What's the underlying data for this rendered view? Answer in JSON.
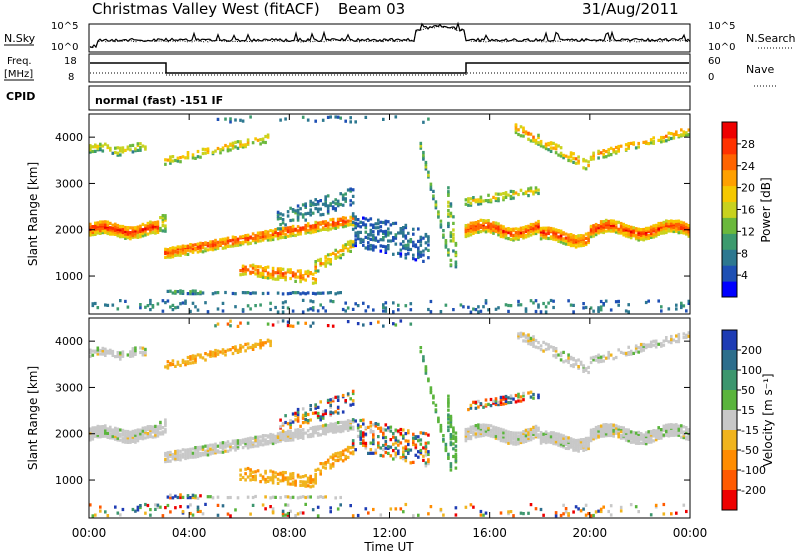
{
  "header": {
    "title": "Christmas Valley West (fitACF)",
    "beam": "Beam 03",
    "date": "31/Aug/2011"
  },
  "top_panels": {
    "nsky_label": "N.Sky",
    "nsearch_label": "N.Search",
    "nsky_ticks": [
      "10^5",
      "10^0"
    ],
    "nsearch_ticks": [
      "10^5",
      "10^0"
    ],
    "freq_label": "Freq.",
    "freq_unit": "[MHz]",
    "freq_ticks": [
      "18",
      "8"
    ],
    "nave_label": "Nave",
    "nave_ticks": [
      "60",
      "0"
    ],
    "cpid_label": "CPID",
    "mode_text": "normal (fast) -151 IF"
  },
  "chart_data": [
    {
      "type": "heatmap",
      "name": "power-panel",
      "ylabel": "Slant Range [km]",
      "xlabel": "",
      "yticks": [
        "1000",
        "2000",
        "3000",
        "4000"
      ],
      "ylim": [
        180,
        4500
      ],
      "xlim": [
        0,
        24
      ],
      "colorbar": {
        "label": "Power [dB]",
        "ticks": [
          "4",
          "8",
          "12",
          "16",
          "20",
          "24",
          "28"
        ],
        "colors": [
          "#0000ff",
          "#1e50b4",
          "#2d7890",
          "#3c9a6e",
          "#6ab83c",
          "#c8d21e",
          "#f5c800",
          "#ffa000",
          "#ff6400",
          "#ff3200",
          "#ee0000"
        ]
      }
    },
    {
      "type": "heatmap",
      "name": "velocity-panel",
      "ylabel": "Slant Range [km]",
      "xlabel": "Time UT",
      "yticks": [
        "1000",
        "2000",
        "3000",
        "4000"
      ],
      "xticks": [
        "00:00",
        "04:00",
        "08:00",
        "12:00",
        "16:00",
        "20:00",
        "00:00"
      ],
      "ylim": [
        180,
        4500
      ],
      "xlim": [
        0,
        24
      ],
      "colorbar": {
        "label": "Velocity [m s⁻¹]",
        "ticks": [
          "200",
          "100",
          "50",
          "15",
          "-15",
          "-50",
          "-100",
          "-200"
        ],
        "colors": [
          "#1e3cb4",
          "#2d6e8c",
          "#3c966e",
          "#5ab43c",
          "#c8c8c8",
          "#f0b41e",
          "#ff8c00",
          "#ff5a00",
          "#ee0000"
        ]
      }
    }
  ]
}
